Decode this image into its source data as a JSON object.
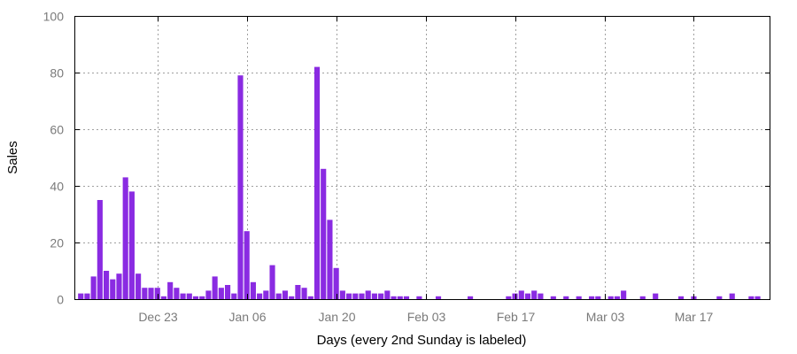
{
  "chart_data": {
    "type": "bar",
    "title": "",
    "xlabel": "Days (every 2nd Sunday is labeled)",
    "ylabel": "Sales",
    "ylim": [
      0,
      100
    ],
    "y_ticks": [
      0,
      20,
      40,
      60,
      80,
      100
    ],
    "x_tick_labels": [
      "Dec 23",
      "Jan 06",
      "Jan 20",
      "Feb 03",
      "Feb 17",
      "Mar 03",
      "Mar 17"
    ],
    "x_tick_dates": [
      "2012-12-23",
      "2013-01-06",
      "2013-01-20",
      "2013-02-03",
      "2013-02-17",
      "2013-03-03",
      "2013-03-17"
    ],
    "xlim": [
      "2012-12-10",
      "2013-03-29"
    ],
    "grid": true,
    "bar_color": "#8a2be2",
    "x": [
      "2012-12-11",
      "2012-12-12",
      "2012-12-13",
      "2012-12-14",
      "2012-12-15",
      "2012-12-16",
      "2012-12-17",
      "2012-12-18",
      "2012-12-19",
      "2012-12-20",
      "2012-12-21",
      "2012-12-22",
      "2012-12-23",
      "2012-12-24",
      "2012-12-25",
      "2012-12-26",
      "2012-12-27",
      "2012-12-28",
      "2012-12-29",
      "2012-12-30",
      "2012-12-31",
      "2013-01-01",
      "2013-01-02",
      "2013-01-03",
      "2013-01-04",
      "2013-01-05",
      "2013-01-06",
      "2013-01-07",
      "2013-01-08",
      "2013-01-09",
      "2013-01-10",
      "2013-01-11",
      "2013-01-12",
      "2013-01-13",
      "2013-01-14",
      "2013-01-15",
      "2013-01-16",
      "2013-01-17",
      "2013-01-18",
      "2013-01-19",
      "2013-01-20",
      "2013-01-21",
      "2013-01-22",
      "2013-01-23",
      "2013-01-24",
      "2013-01-25",
      "2013-01-26",
      "2013-01-27",
      "2013-01-28",
      "2013-01-29",
      "2013-01-30",
      "2013-01-31",
      "2013-02-02",
      "2013-02-05",
      "2013-02-10",
      "2013-02-16",
      "2013-02-17",
      "2013-02-18",
      "2013-02-19",
      "2013-02-20",
      "2013-02-21",
      "2013-02-23",
      "2013-02-25",
      "2013-02-27",
      "2013-03-01",
      "2013-03-02",
      "2013-03-04",
      "2013-03-05",
      "2013-03-06",
      "2013-03-09",
      "2013-03-11",
      "2013-03-15",
      "2013-03-17",
      "2013-03-21",
      "2013-03-23",
      "2013-03-26",
      "2013-03-27"
    ],
    "values": [
      2,
      2,
      8,
      35,
      10,
      7,
      9,
      43,
      38,
      9,
      4,
      4,
      4,
      1,
      6,
      4,
      2,
      2,
      1,
      1,
      3,
      8,
      4,
      5,
      2,
      79,
      24,
      6,
      2,
      3,
      12,
      2,
      3,
      1,
      5,
      4,
      1,
      82,
      46,
      28,
      11,
      3,
      2,
      2,
      2,
      3,
      2,
      2,
      3,
      1,
      1,
      1,
      1,
      1,
      1,
      1,
      2,
      3,
      2,
      3,
      2,
      1,
      1,
      1,
      1,
      1,
      1,
      1,
      3,
      1,
      2,
      1,
      1,
      1,
      2,
      1,
      1
    ]
  }
}
